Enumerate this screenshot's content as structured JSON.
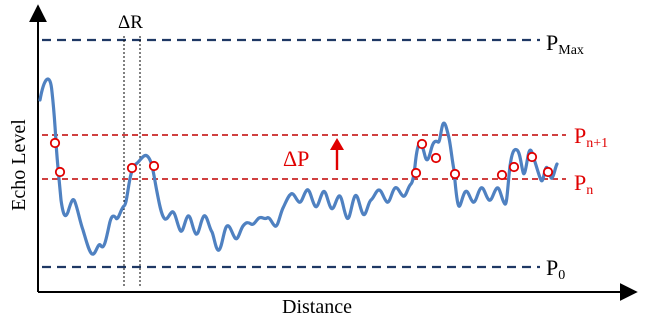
{
  "labels": {
    "x_axis": "Distance",
    "y_axis": "Echo Level",
    "delta_r": "ΔR",
    "delta_p": "ΔP",
    "p_max": {
      "base": "P",
      "sub": "Max"
    },
    "p_n1": {
      "base": "P",
      "sub": "n+1"
    },
    "p_n": {
      "base": "P",
      "sub": "n"
    },
    "p_0": {
      "base": "P",
      "sub": "0"
    }
  },
  "colors": {
    "axis": "#000000",
    "curve": "#4f81c1",
    "threshold_line_black": "#1f3864",
    "threshold_line_red": "#c00000",
    "marker": "#e00000",
    "label_red": "#e00000"
  },
  "elements": {
    "curve": "echo-signal",
    "thresholds": [
      "P_Max",
      "P_n+1",
      "P_n",
      "P_0"
    ],
    "markers": "crossing-points",
    "arrow": "delta-p-arrow"
  }
}
